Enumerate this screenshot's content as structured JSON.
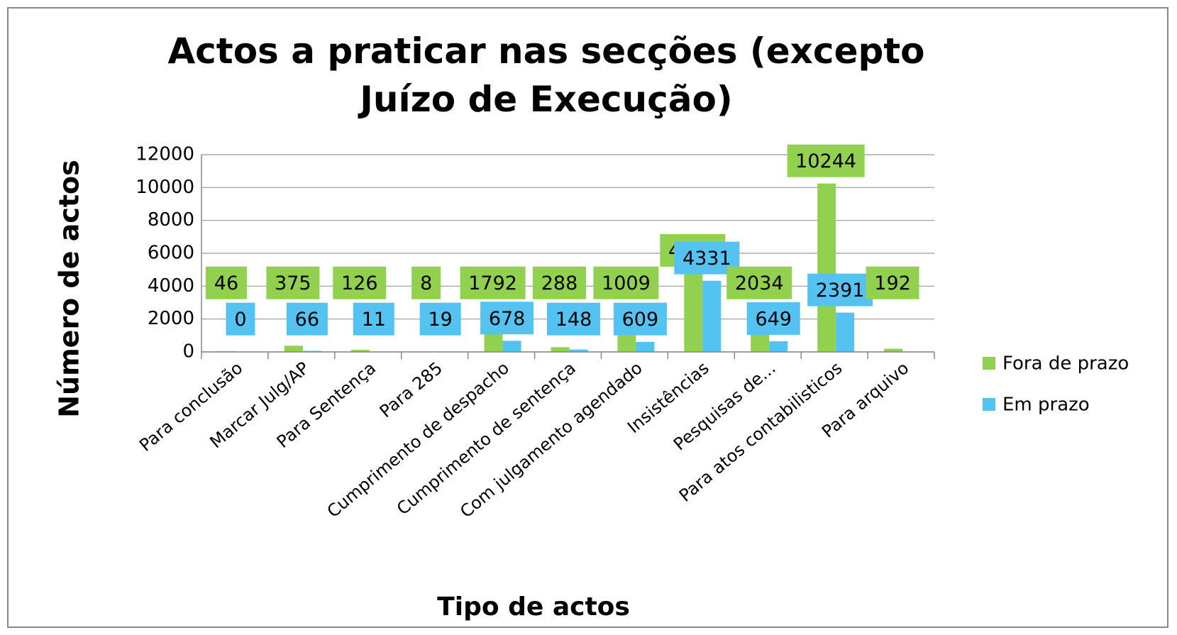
{
  "chart_data": {
    "type": "bar",
    "title": "Actos a praticar nas secções (excepto Juízo de Execução)",
    "xlabel": "Tipo de actos",
    "ylabel": "Número de actos",
    "categories": [
      "Para conclusão",
      "Marcar Julg/AP",
      "Para Sentença",
      "Para 285",
      "Cumprimento de despacho",
      "Cumprimento de sentença",
      "Com julgamento agendado",
      "Insistências",
      "Pesquisas de...",
      "Para atos contabilisticos",
      "Para arquivo"
    ],
    "series": [
      {
        "name": "Fora de prazo",
        "color": "#92d050",
        "values": [
          46,
          375,
          126,
          8,
          1792,
          288,
          1009,
          4793,
          2034,
          10244,
          192
        ]
      },
      {
        "name": "Em prazo",
        "color": "#55c3f2",
        "values": [
          0,
          66,
          11,
          19,
          678,
          148,
          609,
          4331,
          649,
          2391,
          null
        ]
      }
    ],
    "ylim": [
      0,
      12000
    ],
    "yticks": [
      0,
      2000,
      4000,
      6000,
      8000,
      10000,
      12000
    ],
    "grid": true,
    "legend": "right"
  }
}
